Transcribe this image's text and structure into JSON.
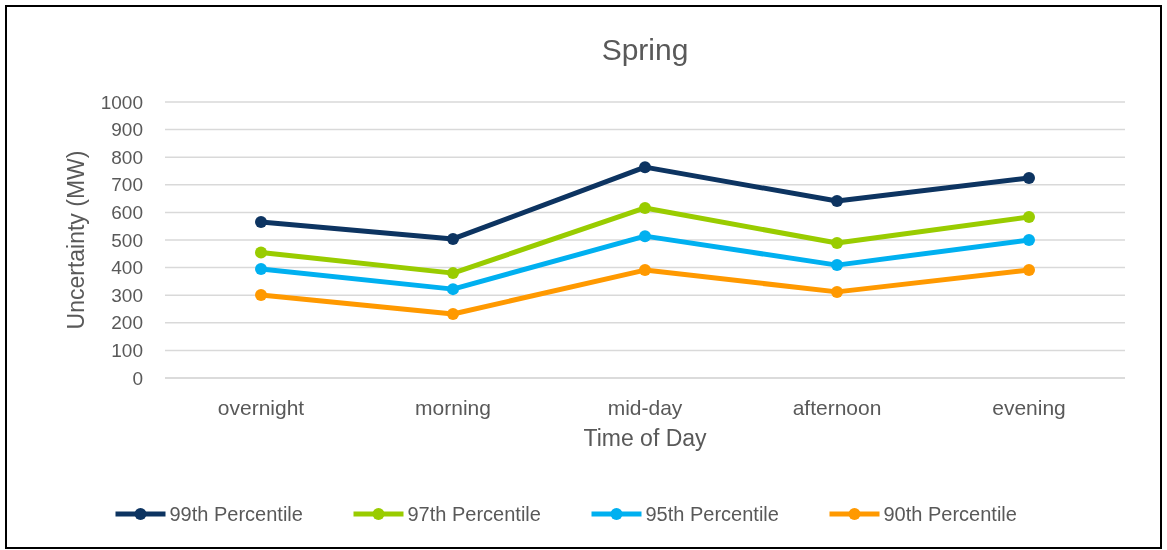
{
  "chart_data": {
    "type": "line",
    "title": "Spring",
    "xlabel": "Time of Day",
    "ylabel": "Uncertainty (MW)",
    "categories": [
      "overnight",
      "morning",
      "mid-day",
      "afternoon",
      "evening"
    ],
    "series": [
      {
        "name": "99th Percentile",
        "color": "#0d3461",
        "values": [
          565,
          504,
          764,
          641,
          725
        ]
      },
      {
        "name": "97th Percentile",
        "color": "#99cc00",
        "values": [
          455,
          380,
          616,
          489,
          583
        ]
      },
      {
        "name": "95th Percentile",
        "color": "#00b0f0",
        "values": [
          395,
          322,
          514,
          409,
          500
        ]
      },
      {
        "name": "90th Percentile",
        "color": "#ff9900",
        "values": [
          301,
          232,
          391,
          312,
          391
        ]
      }
    ],
    "ylim": [
      0,
      1000
    ],
    "yticks": [
      0,
      100,
      200,
      300,
      400,
      500,
      600,
      700,
      800,
      900,
      1000
    ],
    "grid": "y",
    "legend": "bottom",
    "marker": "circle",
    "line_style": "solid"
  }
}
